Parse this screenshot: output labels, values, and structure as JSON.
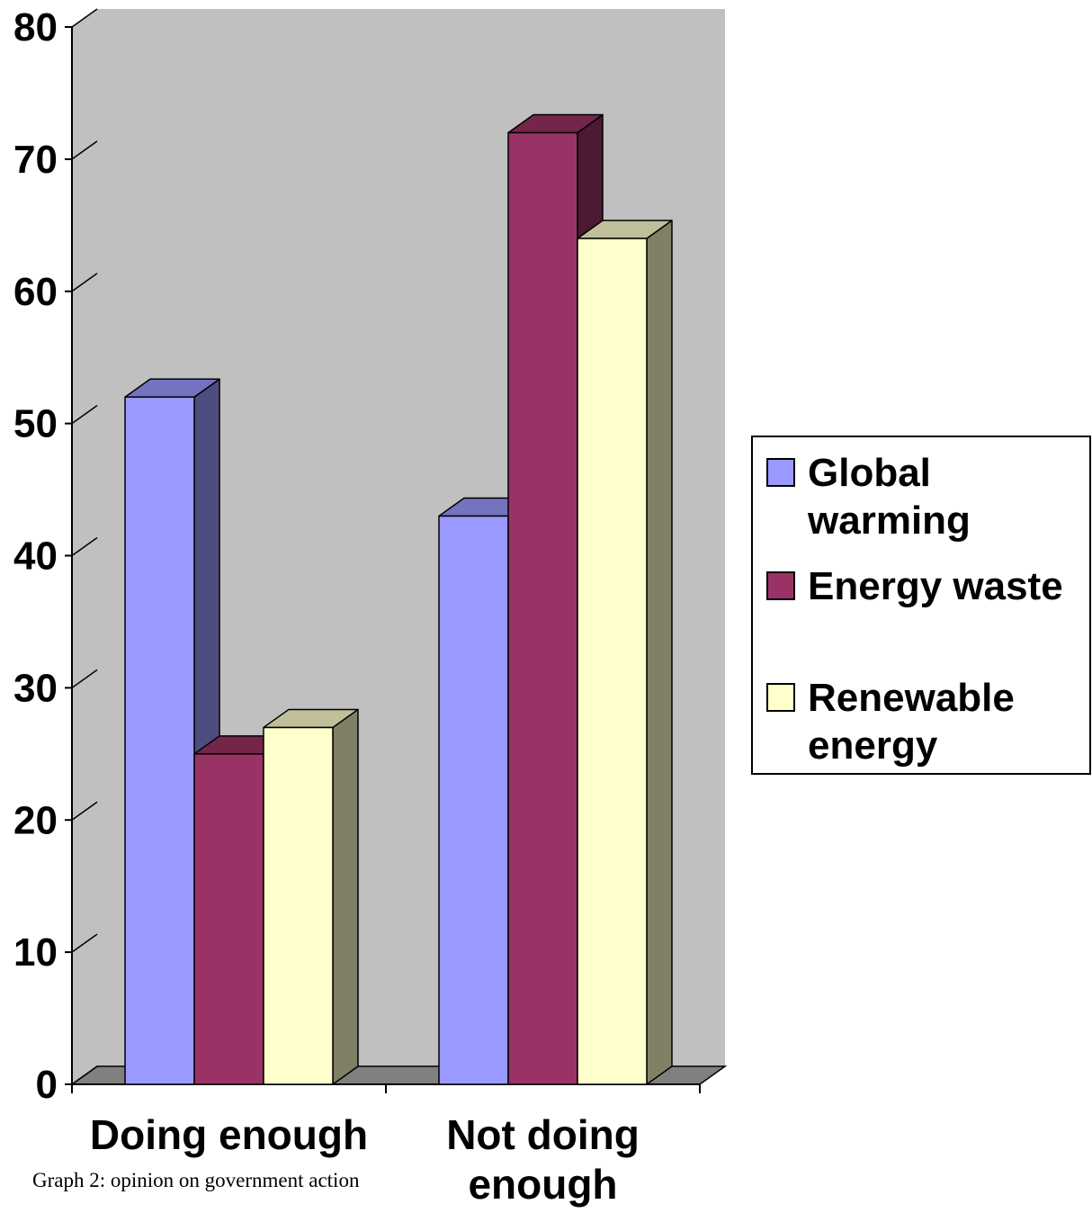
{
  "chart_data": {
    "type": "bar",
    "categories": [
      "Doing enough",
      "Not doing enough"
    ],
    "series": [
      {
        "name": "Global warming",
        "values": [
          52,
          43
        ]
      },
      {
        "name": "Energy waste",
        "values": [
          25,
          72
        ]
      },
      {
        "name": "Renewable energy",
        "values": [
          27,
          64
        ]
      }
    ],
    "ylim": [
      0,
      80
    ],
    "yticks": [
      "0",
      "10",
      "20",
      "30",
      "40",
      "50",
      "60",
      "70",
      "80"
    ],
    "legend": [
      "Global warming",
      "Energy waste",
      "Renewable energy"
    ],
    "legend_position": "right",
    "colors": {
      "front": [
        "#9999ff",
        "#993366",
        "#ffffcc"
      ],
      "top": [
        "#7373bf",
        "#732649",
        "#bfbf99"
      ],
      "side": [
        "#4d4d80",
        "#4d1933",
        "#808066"
      ],
      "wall": "#c0c0c0",
      "floor": "#808080"
    },
    "three_d": true,
    "caption": "Graph 2: opinion on government action"
  }
}
